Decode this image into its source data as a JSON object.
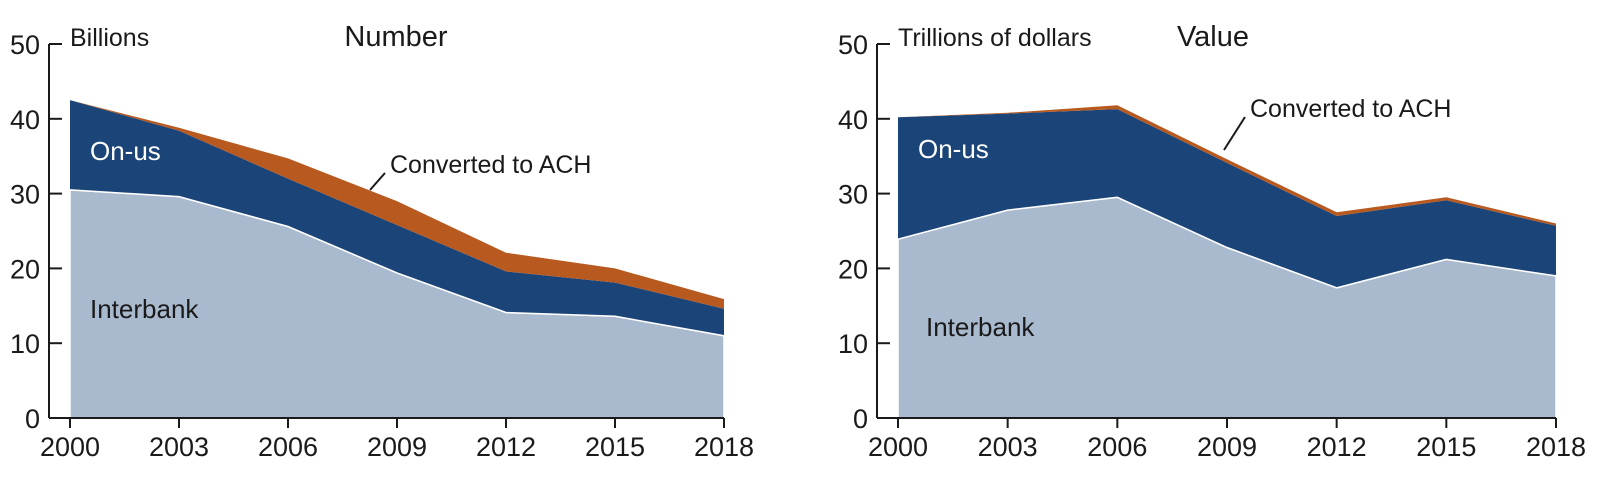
{
  "chart_data": [
    {
      "type": "area",
      "stacked": true,
      "title": "Number",
      "unit_label": "Billions",
      "x": [
        2000,
        2003,
        2006,
        2009,
        2012,
        2015,
        2018
      ],
      "x_ticks": [
        "2000",
        "2003",
        "2006",
        "2009",
        "2012",
        "2015",
        "2018"
      ],
      "y_ticks": [
        "0",
        "10",
        "20",
        "30",
        "40",
        "50"
      ],
      "ylim": [
        0,
        50
      ],
      "grid": false,
      "series": [
        {
          "name": "Interbank",
          "color": "#a9bace",
          "values": [
            30.5,
            29.6,
            25.6,
            19.4,
            14.1,
            13.6,
            11.0
          ]
        },
        {
          "name": "On-us",
          "color": "#1b4578",
          "values": [
            12.0,
            8.8,
            6.4,
            6.4,
            5.5,
            4.5,
            3.6
          ]
        },
        {
          "name": "Converted to ACH",
          "color": "#b85a20",
          "values": [
            0.0,
            0.4,
            2.7,
            3.2,
            2.5,
            1.9,
            1.3
          ]
        }
      ],
      "annotation": "Converted to ACH"
    },
    {
      "type": "area",
      "stacked": true,
      "title": "Value",
      "unit_label": "Trillions of dollars",
      "x": [
        2000,
        2003,
        2006,
        2009,
        2012,
        2015,
        2018
      ],
      "x_ticks": [
        "2000",
        "2003",
        "2006",
        "2009",
        "2012",
        "2015",
        "2018"
      ],
      "y_ticks": [
        "0",
        "10",
        "20",
        "30",
        "40",
        "50"
      ],
      "ylim": [
        0,
        50
      ],
      "grid": false,
      "series": [
        {
          "name": "Interbank",
          "color": "#a9bace",
          "values": [
            23.9,
            27.8,
            29.5,
            22.8,
            17.4,
            21.2,
            19.0
          ]
        },
        {
          "name": "On-us",
          "color": "#1b4578",
          "values": [
            16.3,
            12.9,
            11.8,
            11.3,
            9.6,
            7.9,
            6.7
          ]
        },
        {
          "name": "Converted to ACH",
          "color": "#b85a20",
          "values": [
            0.0,
            0.1,
            0.5,
            0.5,
            0.5,
            0.4,
            0.3
          ]
        }
      ],
      "annotation": "Converted to ACH"
    }
  ]
}
